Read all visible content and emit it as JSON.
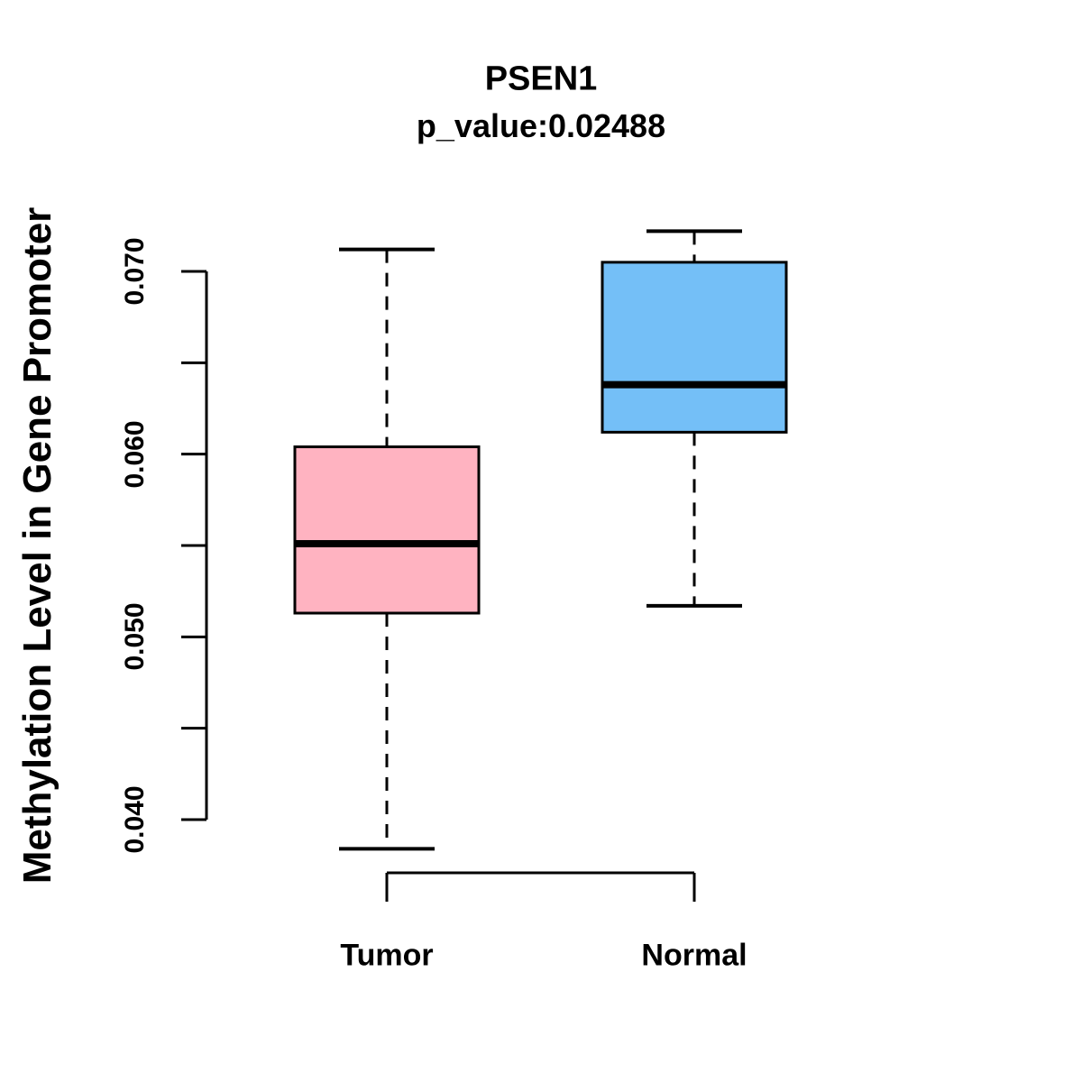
{
  "figure": {
    "background": "#ffffff",
    "line_color": "#000000",
    "text_color": "#000000"
  },
  "chart_data": {
    "type": "boxplot",
    "title": "PSEN1",
    "subtitle": "p_value:0.02488",
    "xlabel": "",
    "ylabel": "Methylation Level in Gene Promoter",
    "categories": [
      "Tumor",
      "Normal"
    ],
    "series": [
      {
        "name": "Tumor",
        "color": "#FFB3C1",
        "border_color": "#000000",
        "lower_whisker": 0.0384,
        "q1": 0.0513,
        "median": 0.0551,
        "q3": 0.0604,
        "upper_whisker": 0.0712,
        "outliers": []
      },
      {
        "name": "Normal",
        "color": "#74BFF7",
        "border_color": "#000000",
        "lower_whisker": 0.0517,
        "q1": 0.0612,
        "median": 0.0638,
        "q3": 0.0705,
        "upper_whisker": 0.0722,
        "outliers": []
      }
    ],
    "ylim": [
      0.04,
      0.07
    ],
    "yticks": [
      0.04,
      0.045,
      0.05,
      0.055,
      0.06,
      0.065,
      0.07
    ],
    "ytick_labels": [
      "0.040",
      "0.050",
      "0.060",
      "0.070"
    ],
    "grid": false,
    "legend": "none",
    "whisker_style": "dashed"
  }
}
